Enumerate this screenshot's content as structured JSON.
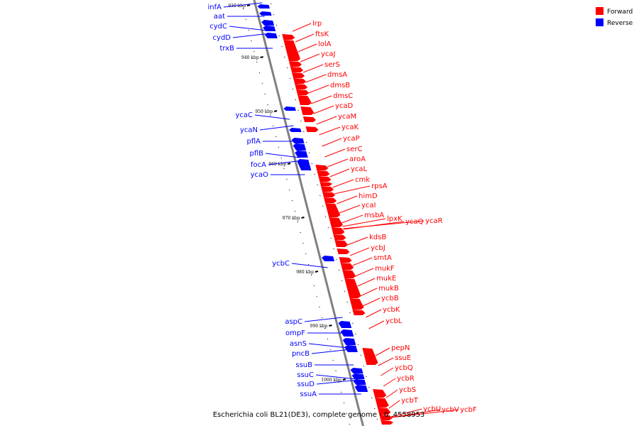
{
  "caption": "Escherichia coli BL21(DE3), complete genome - 0..4558953",
  "legend": [
    {
      "label": "Forward",
      "color": "#ff0000"
    },
    {
      "label": "Reverse",
      "color": "#0000ff"
    }
  ],
  "colors": {
    "forward": "#ff0000",
    "reverse": "#0000ff",
    "backbone": "#808080"
  },
  "ticks": [
    "930 kbp",
    "940 kbp",
    "950 kbp",
    "960 kbp",
    "970 kbp",
    "980 kbp",
    "990 kbp",
    "1000 kbp"
  ],
  "reverse_genes": [
    "infA",
    "aat",
    "cydC",
    "cydD",
    "trxB",
    "ycaC",
    "ycaN",
    "pflA",
    "pflB",
    "focA",
    "ycaO",
    "ycbC",
    "aspC",
    "ompF",
    "asnS",
    "pncB",
    "ssuB",
    "ssuC",
    "ssuD",
    "ssuA"
  ],
  "forward_genes": [
    "lrp",
    "ftsK",
    "lolA",
    "ycaJ",
    "serS",
    "dmsA",
    "dmsB",
    "dmsC",
    "ycaD",
    "ycaM",
    "ycaK",
    "ycaP",
    "serC",
    "aroA",
    "ycaL",
    "cmk",
    "rpsA",
    "himD",
    "ycaI",
    "msbA",
    "lpxK",
    "ycaQ",
    "ycaR",
    "kdsB",
    "ycbJ",
    "smtA",
    "mukF",
    "mukE",
    "mukB",
    "ycbB",
    "ycbK",
    "ycbL",
    "pepN",
    "ssuE",
    "ycbQ",
    "ycbR",
    "ycbS",
    "ycbT",
    "ycbU",
    "ycbV",
    "ycbF"
  ]
}
